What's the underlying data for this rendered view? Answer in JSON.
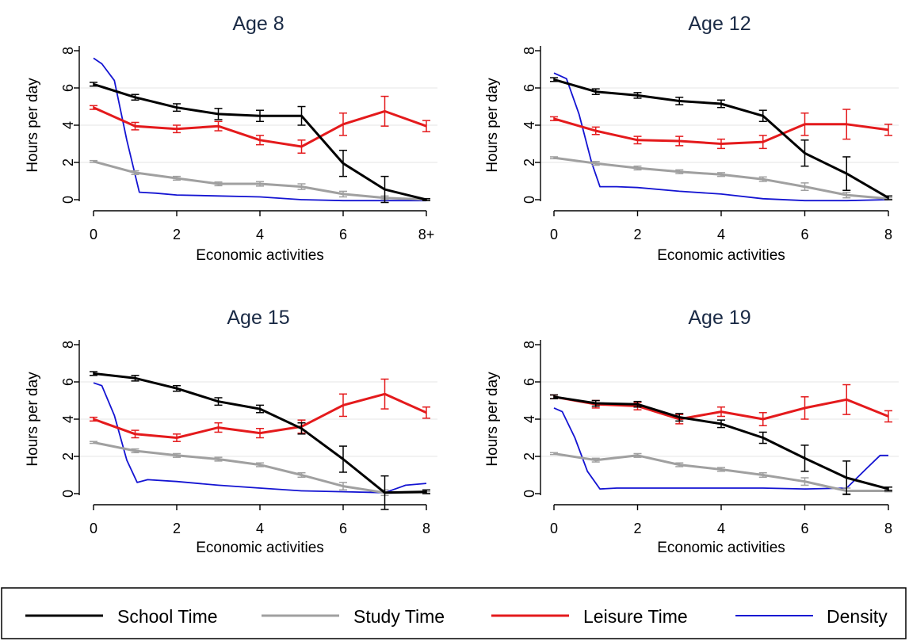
{
  "figure": {
    "legend": [
      {
        "name": "School Time",
        "color": "#000000"
      },
      {
        "name": "Study Time",
        "color": "#a0a0a0"
      },
      {
        "name": "Leisure Time",
        "color": "#e41a1c"
      },
      {
        "name": "Density",
        "color": "#1414d2"
      }
    ]
  },
  "chart_data": [
    {
      "type": "line",
      "title": "Age 8",
      "xlabel": "Economic activities",
      "ylabel": "Hours per day",
      "xlim": [
        0,
        8
      ],
      "ylim": [
        0,
        8
      ],
      "xticks": [
        {
          "value": 0,
          "label": "0"
        },
        {
          "value": 2,
          "label": "2"
        },
        {
          "value": 4,
          "label": "4"
        },
        {
          "value": 6,
          "label": "6"
        },
        {
          "value": 8,
          "label": "8+"
        }
      ],
      "yticks": [
        0,
        2,
        4,
        6,
        8
      ],
      "grid": true,
      "series": [
        {
          "name": "School Time",
          "color": "#000000",
          "x": [
            0,
            1,
            2,
            3,
            4,
            5,
            6,
            7,
            8
          ],
          "values": [
            6.2,
            5.5,
            4.95,
            4.6,
            4.5,
            4.5,
            1.95,
            0.55,
            0.0
          ],
          "err": [
            0.1,
            0.15,
            0.2,
            0.3,
            0.3,
            0.5,
            0.7,
            0.7,
            0.05
          ]
        },
        {
          "name": "Study Time",
          "color": "#a0a0a0",
          "x": [
            0,
            1,
            2,
            3,
            4,
            5,
            6,
            7,
            8
          ],
          "values": [
            2.05,
            1.45,
            1.15,
            0.85,
            0.85,
            0.7,
            0.3,
            0.1,
            0.0
          ],
          "err": [
            0.05,
            0.1,
            0.1,
            0.1,
            0.12,
            0.15,
            0.15,
            0.1,
            0.05
          ]
        },
        {
          "name": "Leisure Time",
          "color": "#e41a1c",
          "x": [
            0,
            1,
            2,
            3,
            4,
            5,
            6,
            7,
            8
          ],
          "values": [
            4.95,
            3.95,
            3.8,
            3.95,
            3.2,
            2.85,
            4.05,
            4.75,
            3.95
          ]
        },
        {
          "name": "Density",
          "color": "#1414d2",
          "x": [
            0,
            0.2,
            0.5,
            0.8,
            1.1,
            1.5,
            2,
            3,
            4,
            5,
            6,
            7,
            8
          ],
          "values": [
            7.6,
            7.3,
            6.4,
            3.2,
            0.4,
            0.35,
            0.25,
            0.2,
            0.15,
            0.0,
            -0.05,
            -0.05,
            -0.05
          ]
        }
      ]
    },
    {
      "type": "line",
      "title": "Age 12",
      "xlabel": "Economic activities",
      "ylabel": "Hours per day",
      "xlim": [
        0,
        8
      ],
      "ylim": [
        0,
        8
      ],
      "xticks": [
        {
          "value": 0,
          "label": "0"
        },
        {
          "value": 2,
          "label": "2"
        },
        {
          "value": 4,
          "label": "4"
        },
        {
          "value": 6,
          "label": "6"
        },
        {
          "value": 8,
          "label": "8"
        }
      ],
      "yticks": [
        0,
        2,
        4,
        6,
        8
      ],
      "grid": true,
      "series": [
        {
          "name": "School Time",
          "color": "#000000",
          "x": [
            0,
            1,
            2,
            3,
            4,
            5,
            6,
            7,
            8
          ],
          "values": [
            6.45,
            5.8,
            5.6,
            5.3,
            5.15,
            4.5,
            2.5,
            1.4,
            0.1
          ]
        },
        {
          "name": "Study Time",
          "color": "#a0a0a0",
          "x": [
            0,
            1,
            2,
            3,
            4,
            5,
            6,
            7,
            8
          ],
          "values": [
            2.25,
            1.95,
            1.7,
            1.5,
            1.35,
            1.1,
            0.7,
            0.25,
            0.05
          ]
        },
        {
          "name": "Leisure Time",
          "color": "#e41a1c",
          "x": [
            0,
            1,
            2,
            3,
            4,
            5,
            6,
            7,
            8
          ],
          "values": [
            4.35,
            3.7,
            3.2,
            3.15,
            3.0,
            3.1,
            4.05,
            4.05,
            3.75
          ]
        },
        {
          "name": "Density",
          "color": "#1414d2",
          "x": [
            0,
            0.3,
            0.6,
            0.9,
            1.1,
            1.5,
            2,
            3,
            4,
            5,
            6,
            7,
            8
          ],
          "values": [
            6.8,
            6.5,
            4.6,
            2.0,
            0.7,
            0.7,
            0.65,
            0.45,
            0.3,
            0.05,
            -0.05,
            -0.05,
            0.0
          ]
        }
      ]
    },
    {
      "type": "line",
      "title": "Age 15",
      "xlabel": "Economic activities",
      "ylabel": "Hours per day",
      "xlim": [
        0,
        8
      ],
      "ylim": [
        0,
        8
      ],
      "xticks": [
        {
          "value": 0,
          "label": "0"
        },
        {
          "value": 2,
          "label": "2"
        },
        {
          "value": 4,
          "label": "4"
        },
        {
          "value": 6,
          "label": "6"
        },
        {
          "value": 8,
          "label": "8"
        }
      ],
      "yticks": [
        0,
        2,
        4,
        6,
        8
      ],
      "grid": true,
      "series": [
        {
          "name": "School Time",
          "color": "#000000",
          "x": [
            0,
            1,
            2,
            3,
            4,
            5,
            6,
            7,
            8
          ],
          "values": [
            6.45,
            6.2,
            5.65,
            4.95,
            4.55,
            3.5,
            1.85,
            0.05,
            0.1
          ]
        },
        {
          "name": "Study Time",
          "color": "#a0a0a0",
          "x": [
            0,
            1,
            2,
            3,
            4,
            5,
            6,
            7,
            8
          ],
          "values": [
            2.75,
            2.3,
            2.05,
            1.85,
            1.55,
            1.0,
            0.4,
            0.05,
            0.05
          ]
        },
        {
          "name": "Leisure Time",
          "color": "#e41a1c",
          "x": [
            0,
            1,
            2,
            3,
            4,
            5,
            6,
            7,
            8
          ],
          "values": [
            4.0,
            3.2,
            3.0,
            3.55,
            3.25,
            3.6,
            4.75,
            5.35,
            4.35
          ]
        },
        {
          "name": "Density",
          "color": "#1414d2",
          "x": [
            0,
            0.2,
            0.5,
            0.8,
            1.05,
            1.3,
            2,
            3,
            4,
            5,
            6,
            7,
            7.5,
            8
          ],
          "values": [
            5.95,
            5.8,
            4.2,
            1.8,
            0.6,
            0.75,
            0.65,
            0.45,
            0.3,
            0.15,
            0.1,
            0.05,
            0.45,
            0.55
          ]
        }
      ]
    },
    {
      "type": "line",
      "title": "Age 19",
      "xlabel": "Economic activities",
      "ylabel": "Hours per day",
      "xlim": [
        0,
        8
      ],
      "ylim": [
        0,
        8
      ],
      "xticks": [
        {
          "value": 0,
          "label": "0"
        },
        {
          "value": 2,
          "label": "2"
        },
        {
          "value": 4,
          "label": "4"
        },
        {
          "value": 6,
          "label": "6"
        },
        {
          "value": 8,
          "label": "8"
        }
      ],
      "yticks": [
        0,
        2,
        4,
        6,
        8
      ],
      "grid": true,
      "series": [
        {
          "name": "School Time",
          "color": "#000000",
          "x": [
            0,
            1,
            2,
            3,
            4,
            5,
            6,
            7,
            8
          ],
          "values": [
            5.2,
            4.85,
            4.8,
            4.1,
            3.75,
            3.0,
            1.9,
            0.85,
            0.25
          ]
        },
        {
          "name": "Study Time",
          "color": "#a0a0a0",
          "x": [
            0,
            1,
            2,
            3,
            4,
            5,
            6,
            7,
            8
          ],
          "values": [
            2.15,
            1.8,
            2.05,
            1.55,
            1.3,
            1.0,
            0.65,
            0.15,
            0.15
          ]
        },
        {
          "name": "Leisure Time",
          "color": "#e41a1c",
          "x": [
            0,
            1,
            2,
            3,
            4,
            5,
            6,
            7,
            8
          ],
          "values": [
            5.2,
            4.8,
            4.7,
            4.0,
            4.4,
            4.0,
            4.6,
            5.05,
            4.15
          ]
        },
        {
          "name": "Density",
          "color": "#1414d2",
          "x": [
            0,
            0.2,
            0.5,
            0.8,
            1.1,
            1.5,
            2,
            3,
            4,
            5,
            6,
            7,
            7.5,
            7.8,
            8
          ],
          "values": [
            4.6,
            4.4,
            3.0,
            1.2,
            0.25,
            0.3,
            0.3,
            0.3,
            0.3,
            0.3,
            0.25,
            0.3,
            1.4,
            2.05,
            2.05
          ]
        }
      ]
    }
  ]
}
